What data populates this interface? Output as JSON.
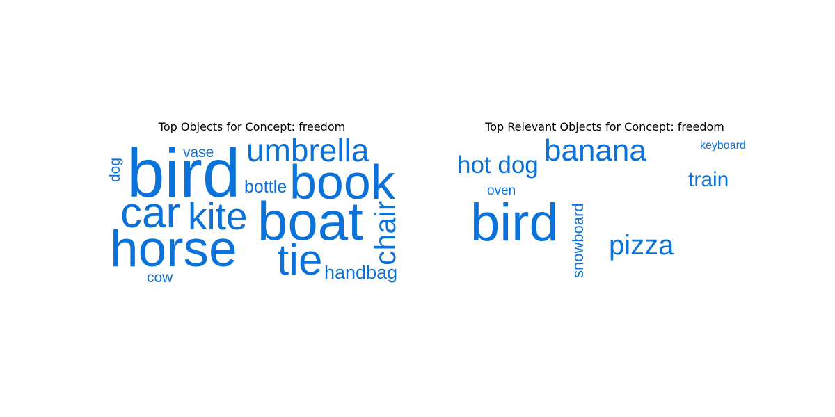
{
  "panels": [
    {
      "title": "Top Objects for Concept: freedom",
      "color": "#0a72d8",
      "words": [
        {
          "text": "bird"
        },
        {
          "text": "umbrella"
        },
        {
          "text": "vase"
        },
        {
          "text": "dog"
        },
        {
          "text": "book"
        },
        {
          "text": "bottle"
        },
        {
          "text": "car"
        },
        {
          "text": "kite"
        },
        {
          "text": "boat"
        },
        {
          "text": "chair"
        },
        {
          "text": "horse"
        },
        {
          "text": "tie"
        },
        {
          "text": "handbag"
        },
        {
          "text": "cow"
        }
      ]
    },
    {
      "title": "Top Relevant Objects for Concept: freedom",
      "color": "#0a72d8",
      "words": [
        {
          "text": "banana"
        },
        {
          "text": "hot dog"
        },
        {
          "text": "keyboard"
        },
        {
          "text": "train"
        },
        {
          "text": "oven"
        },
        {
          "text": "bird"
        },
        {
          "text": "snowboard"
        },
        {
          "text": "pizza"
        }
      ]
    }
  ]
}
